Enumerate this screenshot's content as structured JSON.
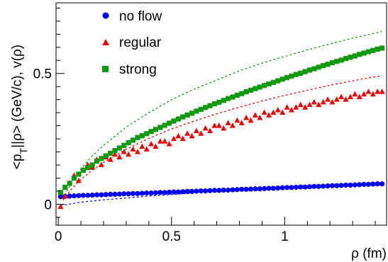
{
  "chart_data": {
    "type": "scatter",
    "xlabel": "ρ (fm)",
    "ylabel_parts": {
      "main": "<p",
      "sub": "T",
      "rest": "||ρ> (GeV/c), v(ρ)"
    },
    "xlim": [
      -0.01,
      1.45
    ],
    "ylim": [
      -0.08,
      0.77
    ],
    "x_ticks": [
      0,
      0.5,
      1
    ],
    "x_tick_labels": [
      "0",
      "0.5",
      "1"
    ],
    "y_ticks": [
      0,
      0.5
    ],
    "y_tick_labels": [
      "0",
      "0.5"
    ],
    "grid": false,
    "legend_position": "top-left",
    "series": [
      {
        "name": "no flow",
        "marker": "circle",
        "color": "#0000ee",
        "x": [
          0.01,
          0.03,
          0.05,
          0.07,
          0.09,
          0.11,
          0.13,
          0.15,
          0.17,
          0.19,
          0.21,
          0.23,
          0.25,
          0.27,
          0.29,
          0.31,
          0.33,
          0.35,
          0.37,
          0.39,
          0.41,
          0.43,
          0.45,
          0.47,
          0.49,
          0.51,
          0.53,
          0.55,
          0.57,
          0.59,
          0.61,
          0.63,
          0.65,
          0.67,
          0.69,
          0.71,
          0.73,
          0.75,
          0.77,
          0.79,
          0.81,
          0.83,
          0.85,
          0.87,
          0.89,
          0.91,
          0.93,
          0.95,
          0.97,
          0.99,
          1.01,
          1.03,
          1.05,
          1.07,
          1.09,
          1.11,
          1.13,
          1.15,
          1.17,
          1.19,
          1.21,
          1.23,
          1.25,
          1.27,
          1.29,
          1.31,
          1.33,
          1.35,
          1.37,
          1.39,
          1.41,
          1.43
        ],
        "y": [
          0.029,
          0.03,
          0.031,
          0.032,
          0.033,
          0.034,
          0.034,
          0.035,
          0.036,
          0.036,
          0.037,
          0.038,
          0.038,
          0.039,
          0.04,
          0.04,
          0.041,
          0.041,
          0.042,
          0.043,
          0.043,
          0.044,
          0.045,
          0.045,
          0.046,
          0.047,
          0.047,
          0.048,
          0.049,
          0.049,
          0.05,
          0.051,
          0.051,
          0.052,
          0.053,
          0.053,
          0.054,
          0.054,
          0.055,
          0.056,
          0.057,
          0.057,
          0.058,
          0.059,
          0.059,
          0.06,
          0.061,
          0.061,
          0.062,
          0.063,
          0.064,
          0.064,
          0.065,
          0.066,
          0.066,
          0.067,
          0.068,
          0.068,
          0.069,
          0.07,
          0.071,
          0.071,
          0.072,
          0.073,
          0.073,
          0.074,
          0.075,
          0.076,
          0.076,
          0.077,
          0.078,
          0.078
        ]
      },
      {
        "name": "regular",
        "marker": "triangle",
        "color": "#ee0000",
        "x": [
          0.01,
          0.03,
          0.05,
          0.07,
          0.09,
          0.11,
          0.13,
          0.15,
          0.17,
          0.19,
          0.21,
          0.23,
          0.25,
          0.27,
          0.29,
          0.31,
          0.33,
          0.35,
          0.37,
          0.39,
          0.41,
          0.43,
          0.45,
          0.47,
          0.49,
          0.51,
          0.53,
          0.55,
          0.57,
          0.59,
          0.61,
          0.63,
          0.65,
          0.67,
          0.69,
          0.71,
          0.73,
          0.75,
          0.77,
          0.79,
          0.81,
          0.83,
          0.85,
          0.87,
          0.89,
          0.91,
          0.93,
          0.95,
          0.97,
          0.99,
          1.01,
          1.03,
          1.05,
          1.07,
          1.09,
          1.11,
          1.13,
          1.15,
          1.17,
          1.19,
          1.21,
          1.23,
          1.25,
          1.27,
          1.29,
          1.31,
          1.33,
          1.35,
          1.37,
          1.39,
          1.41,
          1.43
        ],
        "y": [
          -0.01,
          0.03,
          0.08,
          0.11,
          0.09,
          0.13,
          0.15,
          0.14,
          0.17,
          0.15,
          0.18,
          0.17,
          0.19,
          0.18,
          0.2,
          0.19,
          0.21,
          0.2,
          0.22,
          0.21,
          0.23,
          0.22,
          0.24,
          0.24,
          0.23,
          0.25,
          0.26,
          0.25,
          0.27,
          0.26,
          0.28,
          0.27,
          0.29,
          0.28,
          0.3,
          0.3,
          0.29,
          0.31,
          0.3,
          0.32,
          0.31,
          0.33,
          0.32,
          0.34,
          0.33,
          0.35,
          0.34,
          0.35,
          0.36,
          0.35,
          0.37,
          0.36,
          0.37,
          0.38,
          0.37,
          0.38,
          0.39,
          0.38,
          0.39,
          0.4,
          0.39,
          0.4,
          0.41,
          0.4,
          0.41,
          0.42,
          0.41,
          0.42,
          0.43,
          0.42,
          0.43,
          0.43
        ]
      },
      {
        "name": "strong",
        "marker": "square",
        "color": "#119911",
        "x": [
          0.01,
          0.03,
          0.05,
          0.07,
          0.09,
          0.11,
          0.13,
          0.15,
          0.17,
          0.19,
          0.21,
          0.23,
          0.25,
          0.27,
          0.29,
          0.31,
          0.33,
          0.35,
          0.37,
          0.39,
          0.41,
          0.43,
          0.45,
          0.47,
          0.49,
          0.51,
          0.53,
          0.55,
          0.57,
          0.59,
          0.61,
          0.63,
          0.65,
          0.67,
          0.69,
          0.71,
          0.73,
          0.75,
          0.77,
          0.79,
          0.81,
          0.83,
          0.85,
          0.87,
          0.89,
          0.91,
          0.93,
          0.95,
          0.97,
          0.99,
          1.01,
          1.03,
          1.05,
          1.07,
          1.09,
          1.11,
          1.13,
          1.15,
          1.17,
          1.19,
          1.21,
          1.23,
          1.25,
          1.27,
          1.29,
          1.31,
          1.33,
          1.35,
          1.37,
          1.39,
          1.41,
          1.43
        ],
        "y": [
          0.045,
          0.065,
          0.08,
          0.1,
          0.115,
          0.13,
          0.14,
          0.15,
          0.165,
          0.175,
          0.185,
          0.195,
          0.205,
          0.215,
          0.225,
          0.235,
          0.245,
          0.255,
          0.262,
          0.27,
          0.278,
          0.286,
          0.294,
          0.302,
          0.31,
          0.318,
          0.326,
          0.334,
          0.341,
          0.348,
          0.356,
          0.363,
          0.37,
          0.377,
          0.384,
          0.39,
          0.397,
          0.404,
          0.41,
          0.417,
          0.423,
          0.43,
          0.436,
          0.442,
          0.448,
          0.454,
          0.46,
          0.466,
          0.472,
          0.478,
          0.484,
          0.49,
          0.496,
          0.501,
          0.507,
          0.513,
          0.518,
          0.524,
          0.53,
          0.535,
          0.541,
          0.546,
          0.551,
          0.557,
          0.562,
          0.567,
          0.573,
          0.578,
          0.583,
          0.588,
          0.593,
          0.597
        ]
      }
    ],
    "curves": [
      {
        "color": "#119911",
        "style": "dotted",
        "x": [
          0.02,
          0.06,
          0.1,
          0.15,
          0.2,
          0.3,
          0.4,
          0.5,
          0.6,
          0.7,
          0.8,
          0.9,
          1.0,
          1.1,
          1.2,
          1.3,
          1.43
        ],
        "y": [
          0.02,
          0.085,
          0.135,
          0.185,
          0.225,
          0.295,
          0.35,
          0.4,
          0.44,
          0.475,
          0.51,
          0.54,
          0.565,
          0.59,
          0.613,
          0.635,
          0.66
        ]
      },
      {
        "color": "#ee0000",
        "style": "dotted",
        "x": [
          0.02,
          0.06,
          0.1,
          0.15,
          0.2,
          0.3,
          0.4,
          0.5,
          0.6,
          0.7,
          0.8,
          0.9,
          1.0,
          1.1,
          1.2,
          1.3,
          1.43
        ],
        "y": [
          0.015,
          0.06,
          0.095,
          0.13,
          0.16,
          0.21,
          0.252,
          0.288,
          0.318,
          0.346,
          0.371,
          0.395,
          0.416,
          0.436,
          0.455,
          0.472,
          0.492
        ]
      },
      {
        "color": "#0000ee",
        "style": "dotted",
        "x": [
          0.01,
          0.1,
          0.2,
          0.3,
          0.4,
          0.5,
          0.6,
          0.7,
          0.8,
          0.9,
          1.0,
          1.1,
          1.2,
          1.3,
          1.43
        ],
        "y": [
          -0.005,
          0.008,
          0.017,
          0.024,
          0.031,
          0.037,
          0.043,
          0.048,
          0.053,
          0.058,
          0.062,
          0.066,
          0.07,
          0.074,
          0.078
        ]
      }
    ]
  }
}
